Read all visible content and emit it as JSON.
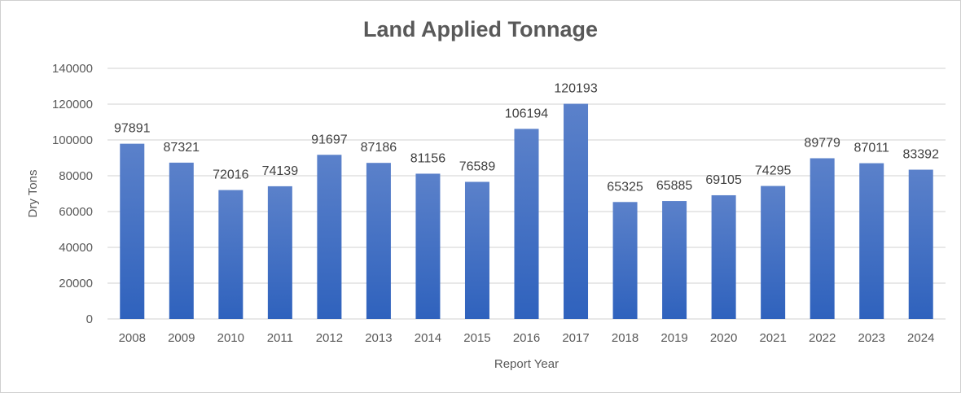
{
  "chart_data": {
    "type": "bar",
    "title": "Land Applied Tonnage",
    "xlabel": "Report Year",
    "ylabel": "Dry Tons",
    "ylim": [
      0,
      140000
    ],
    "yticks": [
      0,
      20000,
      40000,
      60000,
      80000,
      100000,
      120000,
      140000
    ],
    "grid": true,
    "legend": "none",
    "categories": [
      "2008",
      "2009",
      "2010",
      "2011",
      "2012",
      "2013",
      "2014",
      "2015",
      "2016",
      "2017",
      "2018",
      "2019",
      "2020",
      "2021",
      "2022",
      "2023",
      "2024"
    ],
    "values": [
      97891,
      87321,
      72016,
      74139,
      91697,
      87186,
      81156,
      76589,
      106194,
      120193,
      65325,
      65885,
      69105,
      74295,
      89779,
      87011,
      83392
    ],
    "colors": {
      "bar_top": "#5b81ca",
      "bar_bottom": "#2f62bd",
      "grid": "#d9d9d9"
    }
  }
}
